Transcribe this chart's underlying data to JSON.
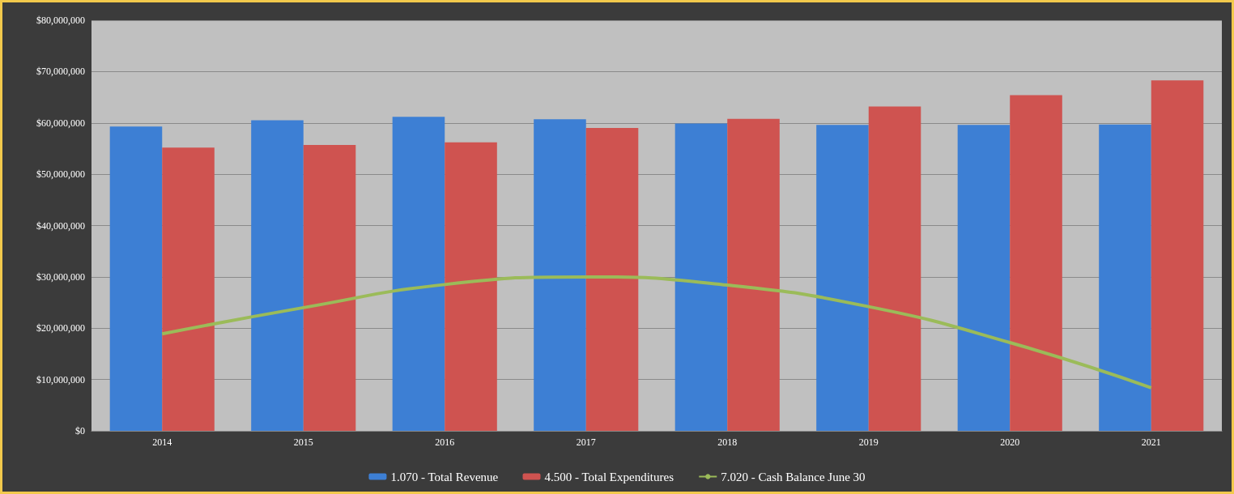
{
  "chart_data": {
    "type": "bar",
    "categories": [
      "2014",
      "2015",
      "2016",
      "2017",
      "2018",
      "2019",
      "2020",
      "2021"
    ],
    "series": [
      {
        "name": "1.070 - Total Revenue",
        "color": "#3d7fd4",
        "values": [
          59300000,
          60500000,
          61200000,
          60700000,
          59900000,
          59600000,
          59600000,
          59700000
        ]
      },
      {
        "name": "4.500 - Total Expenditures",
        "color": "#cf5350",
        "values": [
          55200000,
          55700000,
          56200000,
          59000000,
          60800000,
          63200000,
          65400000,
          68300000
        ]
      },
      {
        "name": "7.020 - Cash Balance June 30",
        "type": "line",
        "color": "#9bbb59",
        "values": [
          18900000,
          24000000,
          28500000,
          30000000,
          28400000,
          24200000,
          17200000,
          8400000
        ]
      }
    ],
    "ylim": [
      0,
      80000000
    ],
    "yticks": [
      {
        "value": 0,
        "label": "$0"
      },
      {
        "value": 10000000,
        "label": "$10,000,000"
      },
      {
        "value": 20000000,
        "label": "$20,000,000"
      },
      {
        "value": 30000000,
        "label": "$30,000,000"
      },
      {
        "value": 40000000,
        "label": "$40,000,000"
      },
      {
        "value": 50000000,
        "label": "$50,000,000"
      },
      {
        "value": 60000000,
        "label": "$60,000,000"
      },
      {
        "value": 70000000,
        "label": "$70,000,000"
      },
      {
        "value": 80000000,
        "label": "$80,000,000"
      }
    ],
    "grid": "y",
    "legend": "bottom",
    "marker": "none"
  }
}
